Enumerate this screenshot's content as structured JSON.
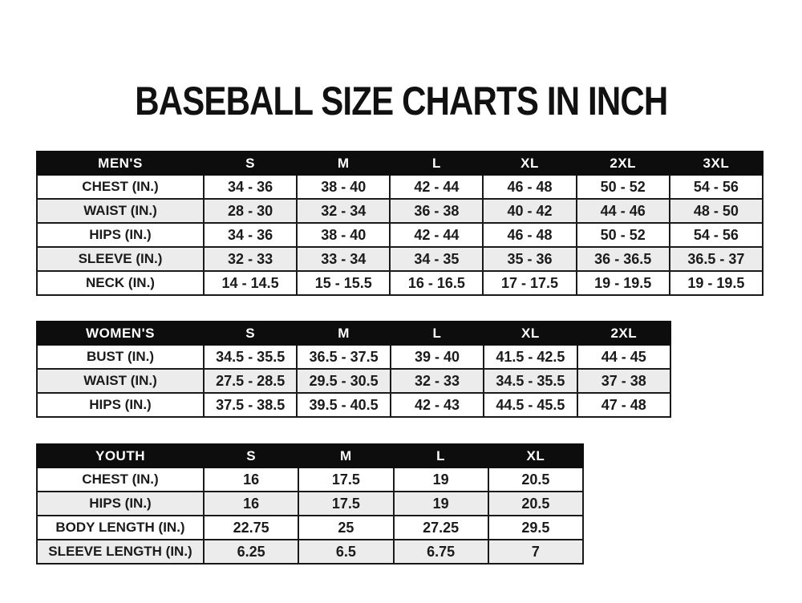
{
  "page": {
    "title": "BASEBALL SIZE CHARTS IN INCH"
  },
  "colors": {
    "page_bg": "#ffffff",
    "header_bg": "#0d0d0d",
    "header_text": "#ffffff",
    "border": "#1a1a1a",
    "row_bg": "#ffffff",
    "row_alt_bg": "#ececec",
    "text": "#1b1b1b"
  },
  "chart_data": [
    {
      "type": "table",
      "name": "mens-size-chart",
      "header": [
        "MEN'S",
        "S",
        "M",
        "L",
        "XL",
        "2XL",
        "3XL"
      ],
      "rows": [
        [
          "CHEST (IN.)",
          "34 - 36",
          "38 - 40",
          "42 - 44",
          "46 - 48",
          "50 - 52",
          "54 - 56"
        ],
        [
          "WAIST (IN.)",
          "28 - 30",
          "32 - 34",
          "36 - 38",
          "40 - 42",
          "44 - 46",
          "48 - 50"
        ],
        [
          "HIPS (IN.)",
          "34 - 36",
          "38 - 40",
          "42 - 44",
          "46 - 48",
          "50 - 52",
          "54 - 56"
        ],
        [
          "SLEEVE (IN.)",
          "32 - 33",
          "33 - 34",
          "34 - 35",
          "35 - 36",
          "36 - 36.5",
          "36.5 - 37"
        ],
        [
          "NECK (IN.)",
          "14 - 14.5",
          "15 - 15.5",
          "16 - 16.5",
          "17 - 17.5",
          "19 - 19.5",
          "19 - 19.5"
        ]
      ]
    },
    {
      "type": "table",
      "name": "womens-size-chart",
      "header": [
        "WOMEN'S",
        "S",
        "M",
        "L",
        "XL",
        "2XL"
      ],
      "rows": [
        [
          "BUST (IN.)",
          "34.5 - 35.5",
          "36.5 - 37.5",
          "39 - 40",
          "41.5 - 42.5",
          "44 - 45"
        ],
        [
          "WAIST (IN.)",
          "27.5 - 28.5",
          "29.5 - 30.5",
          "32 - 33",
          "34.5 - 35.5",
          "37 - 38"
        ],
        [
          "HIPS (IN.)",
          "37.5 - 38.5",
          "39.5 - 40.5",
          "42 - 43",
          "44.5 - 45.5",
          "47 - 48"
        ]
      ]
    },
    {
      "type": "table",
      "name": "youth-size-chart",
      "header": [
        "YOUTH",
        "S",
        "M",
        "L",
        "XL"
      ],
      "rows": [
        [
          "CHEST (IN.)",
          "16",
          "17.5",
          "19",
          "20.5"
        ],
        [
          "HIPS (IN.)",
          "16",
          "17.5",
          "19",
          "20.5"
        ],
        [
          "BODY LENGTH (IN.)",
          "22.75",
          "25",
          "27.25",
          "29.5"
        ],
        [
          "SLEEVE LENGTH (IN.)",
          "6.25",
          "6.5",
          "6.75",
          "7"
        ]
      ]
    }
  ]
}
